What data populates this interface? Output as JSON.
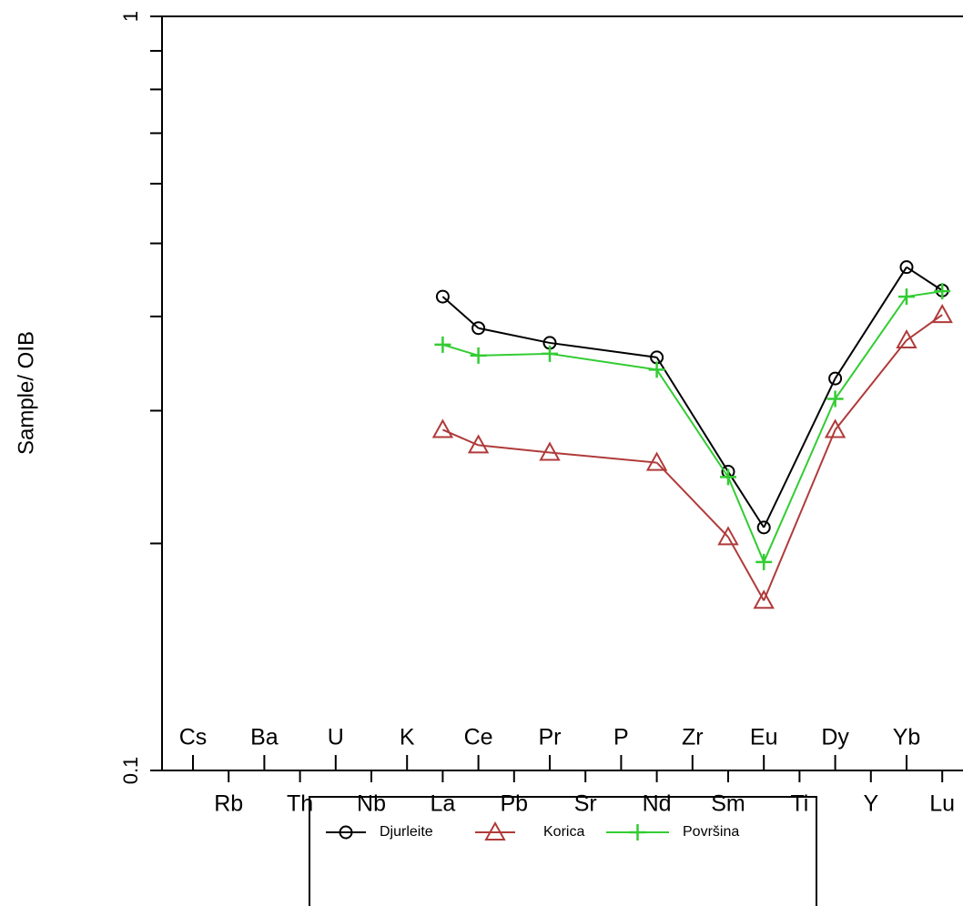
{
  "chart_data": {
    "type": "line",
    "y_label": "Sample/ OIB",
    "log_y": true,
    "categories": [
      "Cs",
      "Rb",
      "Ba",
      "Th",
      "U",
      "Nb",
      "K",
      "La",
      "Ce",
      "Pb",
      "Pr",
      "Sr",
      "P",
      "Nd",
      "Zr",
      "Sm",
      "Eu",
      "Ti",
      "Dy",
      "Y",
      "Yb",
      "Lu"
    ],
    "ylim": [
      0.1,
      1
    ],
    "yticks": [
      0.1,
      1
    ],
    "minor_yticks": [
      0.2,
      0.3,
      0.4,
      0.5,
      0.6,
      0.7,
      0.8,
      0.9
    ],
    "series": [
      {
        "name": "Djurleite",
        "color": "#000000",
        "marker": "circle",
        "values": [
          null,
          null,
          null,
          null,
          null,
          null,
          null,
          0.425,
          0.386,
          null,
          0.369,
          null,
          null,
          0.353,
          null,
          0.249,
          0.21,
          null,
          0.331,
          null,
          0.465,
          0.433
        ]
      },
      {
        "name": "Korica",
        "color": "#b03a3a",
        "marker": "triangle",
        "values": [
          null,
          null,
          null,
          null,
          null,
          null,
          null,
          0.283,
          0.27,
          null,
          0.264,
          null,
          null,
          0.256,
          null,
          0.204,
          0.168,
          null,
          0.283,
          null,
          0.372,
          0.402
        ]
      },
      {
        "name": "Površina",
        "color": "#33cc33",
        "marker": "plus",
        "values": [
          null,
          null,
          null,
          null,
          null,
          null,
          null,
          0.367,
          0.355,
          null,
          0.357,
          null,
          null,
          0.34,
          null,
          0.245,
          0.189,
          null,
          0.311,
          null,
          0.425,
          0.432
        ]
      }
    ]
  }
}
